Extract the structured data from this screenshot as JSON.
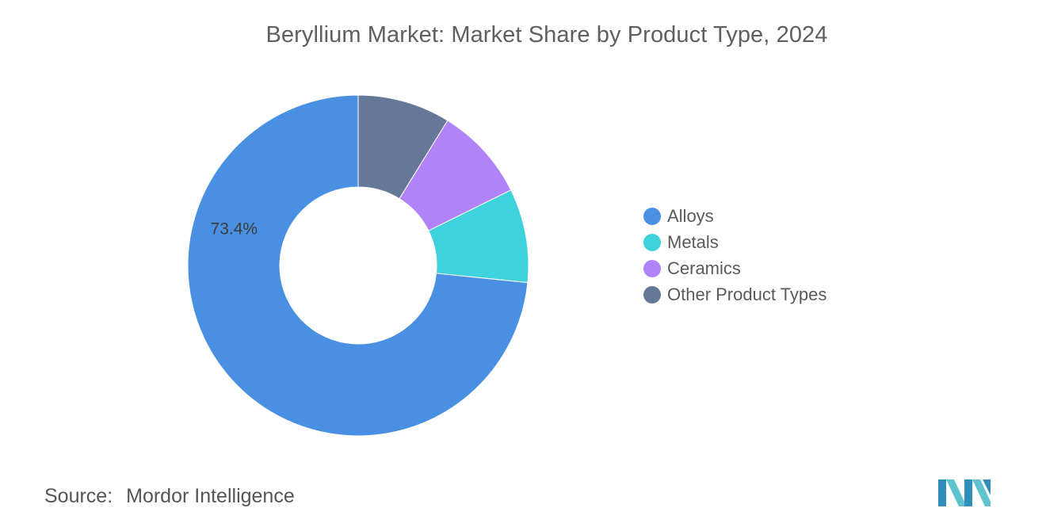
{
  "chart_data": {
    "type": "pie",
    "donut": true,
    "title": "Beryllium Market: Market Share by Product Type, 2024",
    "categories": [
      "Alloys",
      "Metals",
      "Ceramics",
      "Other Product Types"
    ],
    "values": [
      73.4,
      8.9,
      8.9,
      8.8
    ],
    "data_labels": [
      "73.4%",
      "",
      "",
      ""
    ],
    "colors": [
      "#4a90e2",
      "#3ed2dc",
      "#b083f9",
      "#657898"
    ],
    "legend_position": "right"
  },
  "source": {
    "label": "Source:",
    "value": "Mordor Intelligence"
  },
  "logo": {
    "icon": "mordor-intelligence-logo-icon",
    "colors": [
      "#2f8fba",
      "#5fc3cf"
    ]
  }
}
